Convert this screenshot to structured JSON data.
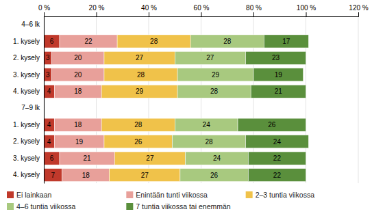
{
  "chart_data": {
    "type": "bar",
    "orientation": "horizontal",
    "stacked": true,
    "data_labels": true,
    "grid": true,
    "legend": "bottom",
    "categories": [
      "4–6 lk",
      "1. kysely",
      "2. kysely",
      "3. kysely",
      "4. kysely",
      "7–9 lk",
      "1. kysely",
      "2. kysely",
      "3. kysely",
      "4. kysely"
    ],
    "series": [
      {
        "name": "Ei lainkaan",
        "color": "#c0392b",
        "values": [
          null,
          6,
          3,
          3,
          4,
          null,
          4,
          4,
          6,
          7
        ]
      },
      {
        "name": "Enintään tunti viikossa",
        "color": "#e8a09a",
        "values": [
          null,
          22,
          20,
          20,
          18,
          null,
          18,
          19,
          21,
          18
        ]
      },
      {
        "name": "2–3 tuntia viikossa",
        "color": "#f0c24a",
        "values": [
          null,
          28,
          27,
          28,
          29,
          null,
          28,
          26,
          27,
          27
        ]
      },
      {
        "name": "4–6 tuntia viikossa",
        "color": "#a8c97f",
        "values": [
          null,
          28,
          27,
          29,
          28,
          null,
          24,
          28,
          24,
          26
        ]
      },
      {
        "name": "7 tuntia viikossa tai enemmän",
        "color": "#5a8f3c",
        "values": [
          null,
          17,
          23,
          19,
          21,
          null,
          26,
          24,
          22,
          22
        ]
      }
    ],
    "xlim": [
      0,
      120
    ],
    "xticks": [
      {
        "value": 0,
        "label": "0 %"
      },
      {
        "value": 20,
        "label": "20 %"
      },
      {
        "value": 40,
        "label": "40 %"
      },
      {
        "value": 60,
        "label": "60 %"
      },
      {
        "value": 80,
        "label": "80 %"
      },
      {
        "value": 100,
        "label": "100 %"
      },
      {
        "value": 120,
        "label": "120 %"
      }
    ]
  }
}
